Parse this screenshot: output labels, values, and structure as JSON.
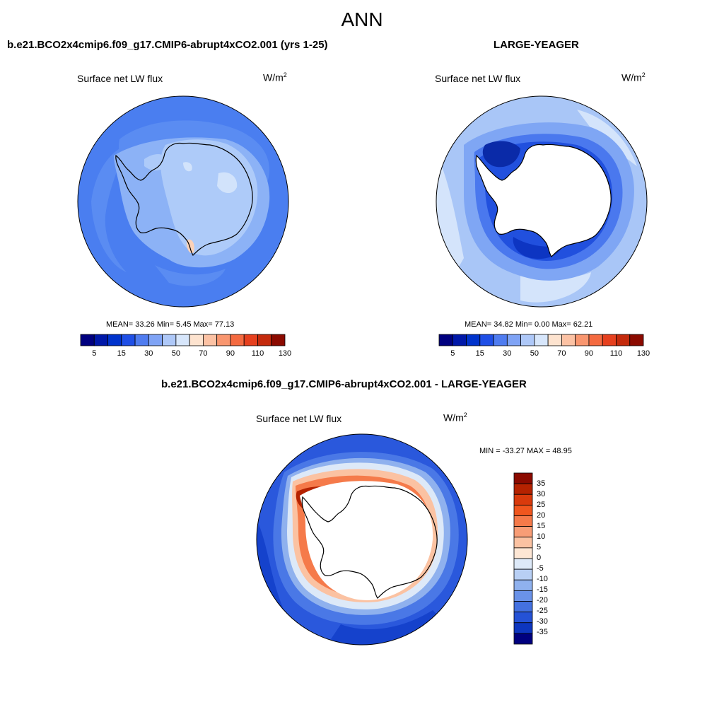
{
  "title": "ANN",
  "panels": [
    {
      "id": "case",
      "title": "b.e21.BCO2x4cmip6.f09_g17.CMIP6-abrupt4xCO2.001 (yrs 1-25)",
      "field": "Surface net LW flux",
      "units_base": "W/m",
      "units_exp": "2",
      "stats": "MEAN=  33.26  Min=   5.45  Max=  77.13"
    },
    {
      "id": "obs",
      "title": "LARGE-YEAGER",
      "field": "Surface net LW flux",
      "units_base": "W/m",
      "units_exp": "2",
      "stats": "MEAN=  34.82  Min=   0.00  Max=  62.21"
    },
    {
      "id": "diff",
      "title": "b.e21.BCO2x4cmip6.f09_g17.CMIP6-abrupt4xCO2.001 - LARGE-YEAGER",
      "field": "Surface net LW flux",
      "units_base": "W/m",
      "units_exp": "2",
      "stats": "MIN = -33.27 MAX =  48.95"
    }
  ],
  "colorbar_abs": {
    "labels": [
      "5",
      "15",
      "30",
      "50",
      "70",
      "90",
      "110",
      "130"
    ],
    "colors": [
      "#00007f",
      "#0018a8",
      "#0033cc",
      "#1f4fe6",
      "#4f7cf0",
      "#7fa3f5",
      "#aec8f8",
      "#d7e6fb",
      "#fde3cf",
      "#fcc2a4",
      "#f9966f",
      "#f46a40",
      "#e6401e",
      "#c42a0c",
      "#8b0a00"
    ]
  },
  "colorbar_diff": {
    "labels": [
      "35",
      "30",
      "25",
      "20",
      "15",
      "10",
      "5",
      "0",
      "-5",
      "-10",
      "-15",
      "-20",
      "-25",
      "-30",
      "-35"
    ],
    "colors": [
      "#8b0a00",
      "#b52200",
      "#d93a0c",
      "#f0561e",
      "#f57a4a",
      "#f89d76",
      "#fbc2a2",
      "#fde6d4",
      "#dde9f8",
      "#b8cff4",
      "#8fb1ee",
      "#6a92e8",
      "#4471e0",
      "#2552d6",
      "#0d36bf",
      "#00007f"
    ]
  }
}
